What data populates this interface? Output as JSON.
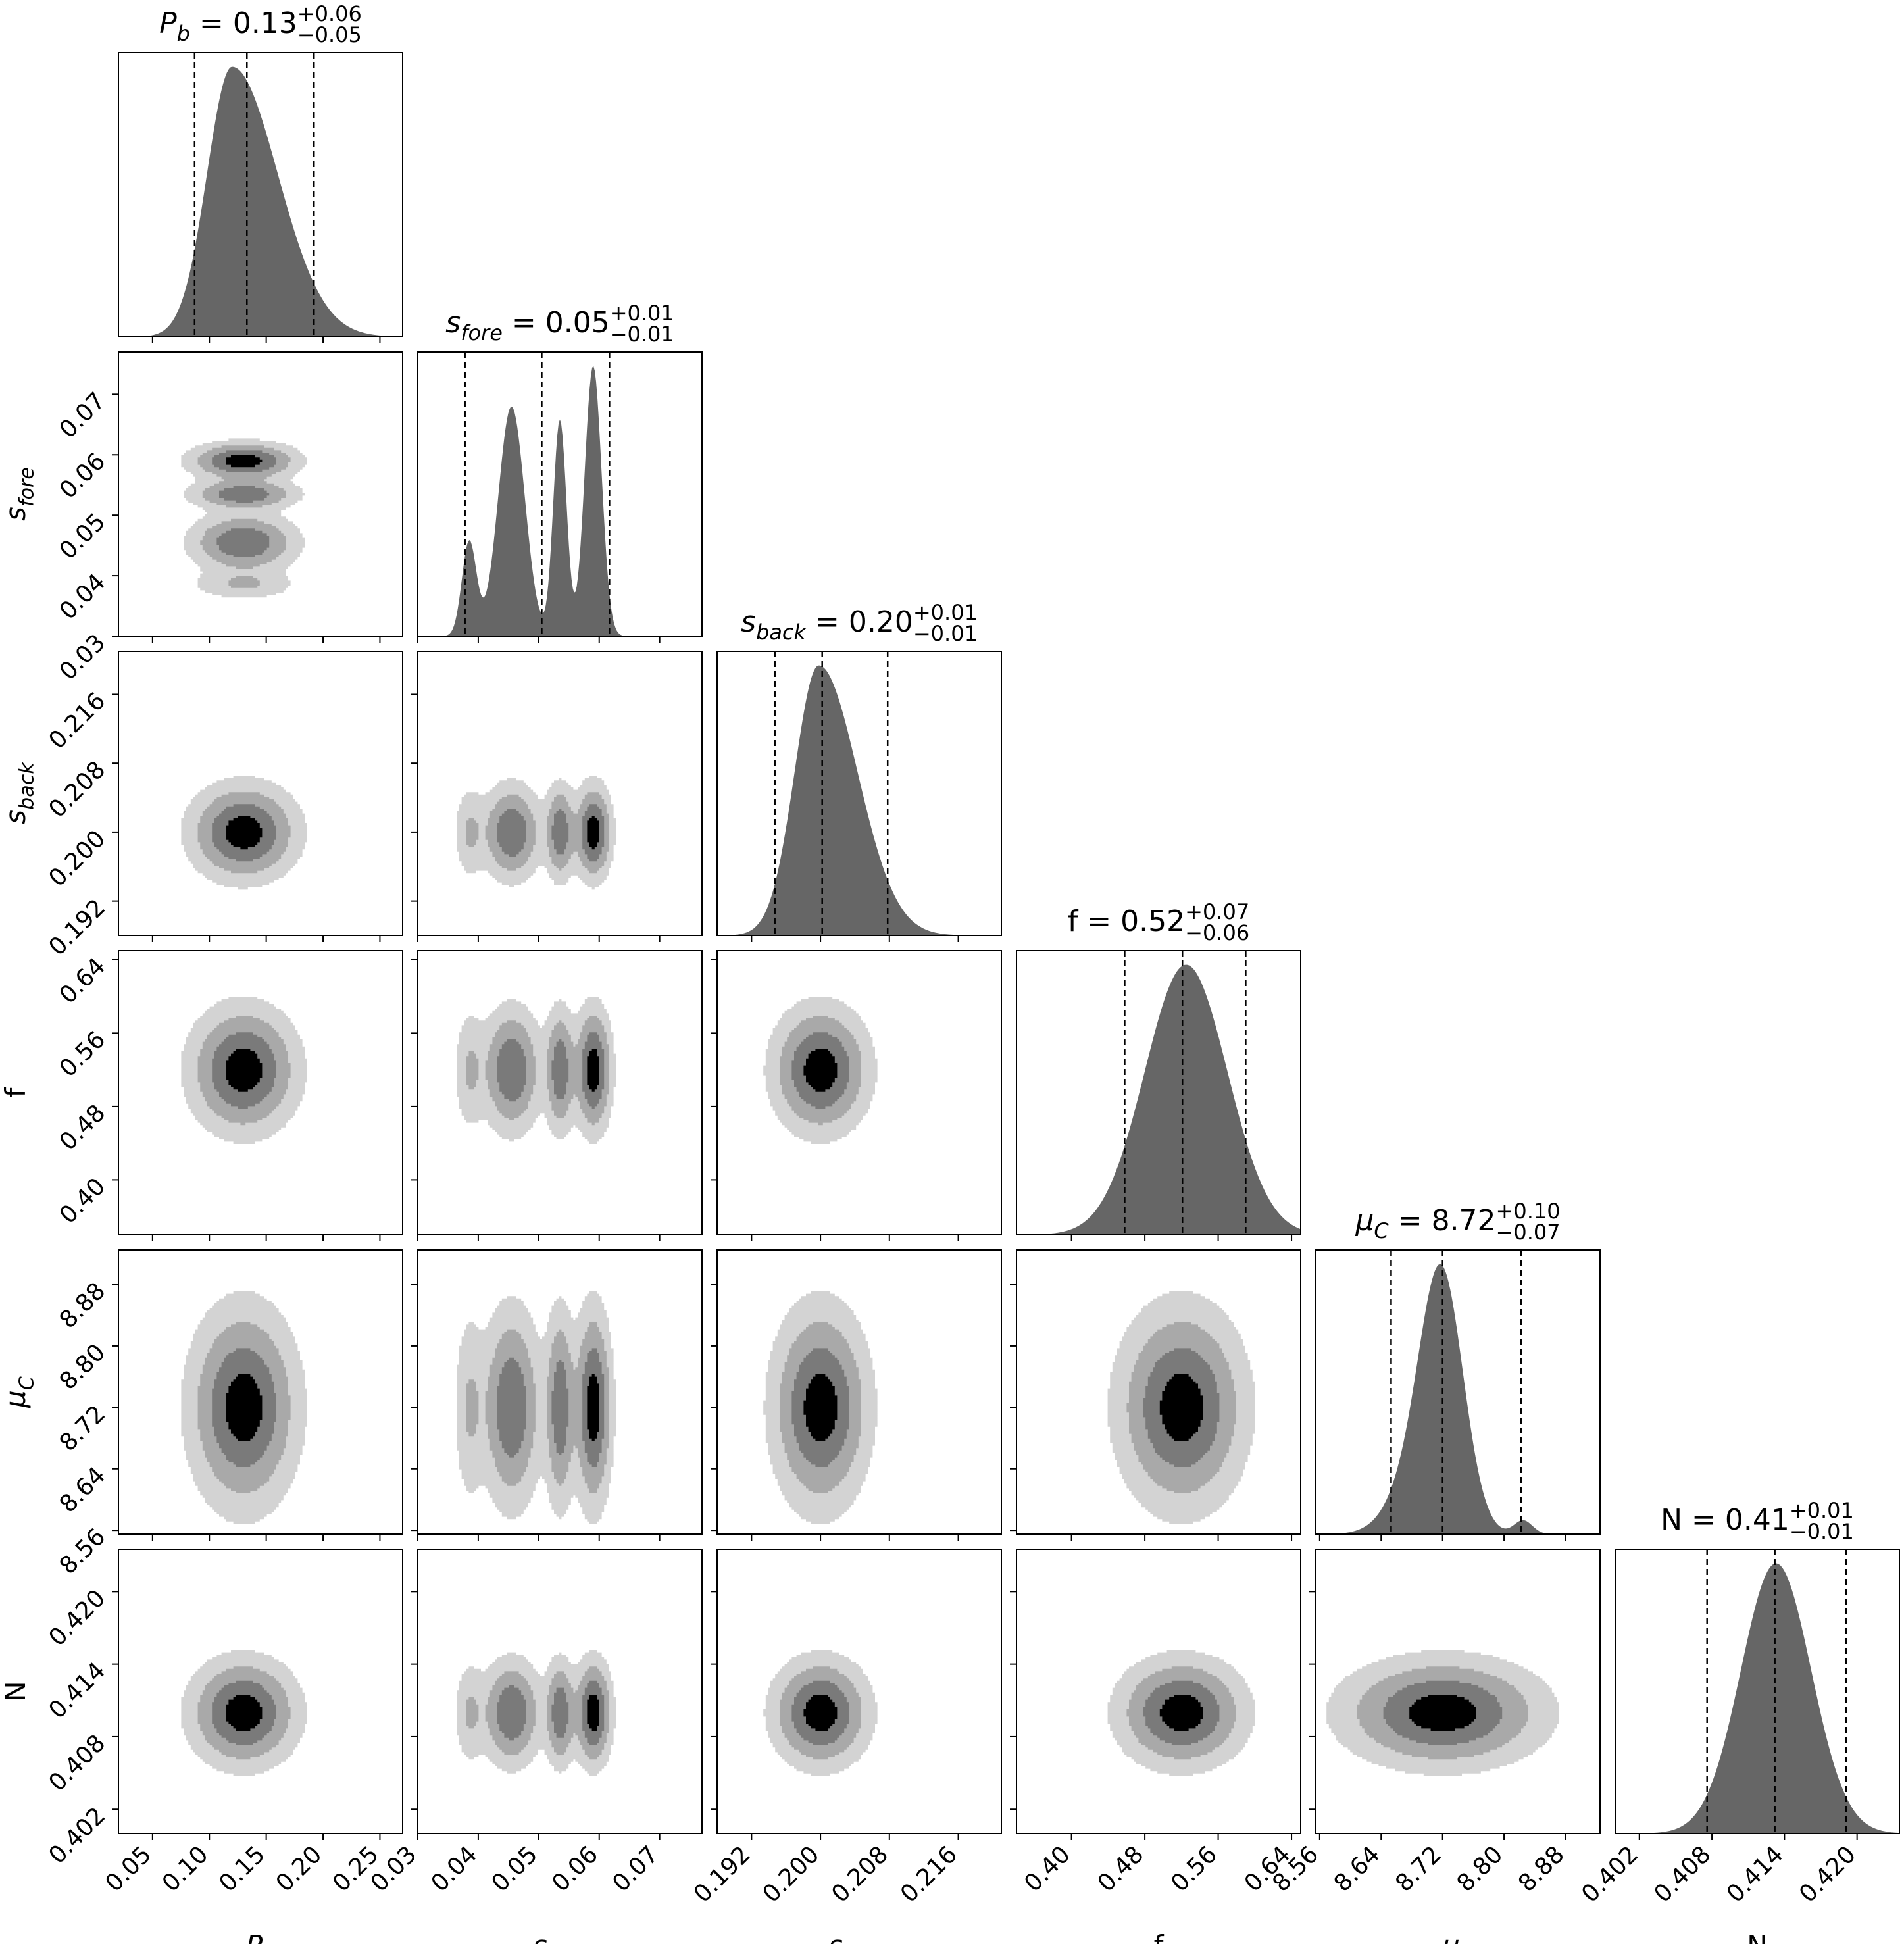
{
  "chart_data": {
    "type": "corner",
    "parameters": [
      {
        "key": "Pb",
        "label": "P",
        "sub": "b",
        "italic": true,
        "median": 0.13,
        "plus": 0.06,
        "minus": 0.05,
        "title_value": "0.13",
        "title_plus": "+0.06",
        "title_minus": "−0.05",
        "range": [
          0.02,
          0.27
        ],
        "ticks": [
          0.05,
          0.1,
          0.15,
          0.2,
          0.25
        ],
        "tick_labels": [
          "0.05",
          "0.10",
          "0.15",
          "0.20",
          "0.25"
        ],
        "quantiles": [
          0.087,
          0.133,
          0.192
        ],
        "hist": {
          "type": "skewed",
          "mode": 0.12,
          "sl": 0.022,
          "sr": 0.04
        }
      },
      {
        "key": "sfore",
        "label": "s",
        "sub": "fore",
        "italic": true,
        "median": 0.05,
        "plus": 0.01,
        "minus": 0.01,
        "title_value": "0.05",
        "title_plus": "+0.01",
        "title_minus": "−0.01",
        "range": [
          0.03,
          0.077
        ],
        "ticks": [
          0.03,
          0.04,
          0.05,
          0.06,
          0.07
        ],
        "tick_labels": [
          "0.03",
          "0.04",
          "0.05",
          "0.06",
          "0.07"
        ],
        "quantiles": [
          0.0378,
          0.0505,
          0.0617
        ],
        "hist": {
          "type": "mixture",
          "components": [
            [
              0.0385,
              0.0012,
              0.35
            ],
            [
              0.0455,
              0.0022,
              0.85
            ],
            [
              0.0535,
              0.0011,
              0.8
            ],
            [
              0.059,
              0.0014,
              1.0
            ]
          ]
        }
      },
      {
        "key": "sback",
        "label": "s",
        "sub": "back",
        "italic": true,
        "median": 0.2,
        "plus": 0.01,
        "minus": 0.01,
        "title_value": "0.20",
        "title_plus": "+0.01",
        "title_minus": "−0.01",
        "range": [
          0.188,
          0.221
        ],
        "ticks": [
          0.192,
          0.2,
          0.208,
          0.216
        ],
        "tick_labels": [
          "0.192",
          "0.200",
          "0.208",
          "0.216"
        ],
        "quantiles": [
          0.1947,
          0.2002,
          0.2078
        ],
        "hist": {
          "type": "skewed",
          "mode": 0.1998,
          "sl": 0.0028,
          "sr": 0.0045
        }
      },
      {
        "key": "f",
        "label": "f",
        "sub": "",
        "italic": false,
        "median": 0.52,
        "plus": 0.07,
        "minus": 0.06,
        "title_value": "0.52",
        "title_plus": "+0.07",
        "title_minus": "−0.06",
        "range": [
          0.34,
          0.65
        ],
        "ticks": [
          0.4,
          0.48,
          0.56,
          0.64
        ],
        "tick_labels": [
          "0.40",
          "0.48",
          "0.56",
          "0.64"
        ],
        "quantiles": [
          0.458,
          0.521,
          0.59
        ],
        "hist": {
          "type": "skewed",
          "mode": 0.525,
          "sl": 0.045,
          "sr": 0.045
        }
      },
      {
        "key": "muC",
        "label": "μ",
        "sub": "C",
        "italic": true,
        "median": 8.72,
        "plus": 0.1,
        "minus": 0.07,
        "title_value": "8.72",
        "title_plus": "+0.10",
        "title_minus": "−0.07",
        "range": [
          8.555,
          8.925
        ],
        "ticks": [
          8.56,
          8.64,
          8.72,
          8.8,
          8.88
        ],
        "tick_labels": [
          "8.56",
          "8.64",
          "8.72",
          "8.80",
          "8.88"
        ],
        "quantiles": [
          8.653,
          8.72,
          8.822
        ],
        "hist": {
          "type": "mixture",
          "components": [
            [
              8.72,
              0.028,
              1.0
            ],
            [
              8.69,
              0.035,
              0.25
            ],
            [
              8.825,
              0.012,
              0.06
            ]
          ]
        }
      },
      {
        "key": "N",
        "label": "N",
        "sub": "",
        "italic": false,
        "median": 0.41,
        "plus": 0.01,
        "minus": 0.01,
        "title_value": "0.41",
        "title_plus": "+0.01",
        "title_minus": "−0.01",
        "range": [
          0.4,
          0.4235
        ],
        "ticks": [
          0.402,
          0.408,
          0.414,
          0.42
        ],
        "tick_labels": [
          "0.402",
          "0.408",
          "0.414",
          "0.420"
        ],
        "quantiles": [
          0.4076,
          0.4132,
          0.4191
        ],
        "hist": {
          "type": "skewed",
          "mode": 0.4133,
          "sl": 0.0029,
          "sr": 0.0029
        }
      }
    ],
    "contours": {
      "levels": [
        0.14,
        0.35,
        0.6,
        0.85
      ],
      "fills": [
        "#d3d3d3",
        "#a9a9a9",
        "#7a7a7a",
        "#000000"
      ],
      "note_sfore_modes": "multi-modal"
    },
    "colors": {
      "hist_fill": "#666666",
      "quantile_line": "#000000",
      "frame": "#000000"
    }
  }
}
